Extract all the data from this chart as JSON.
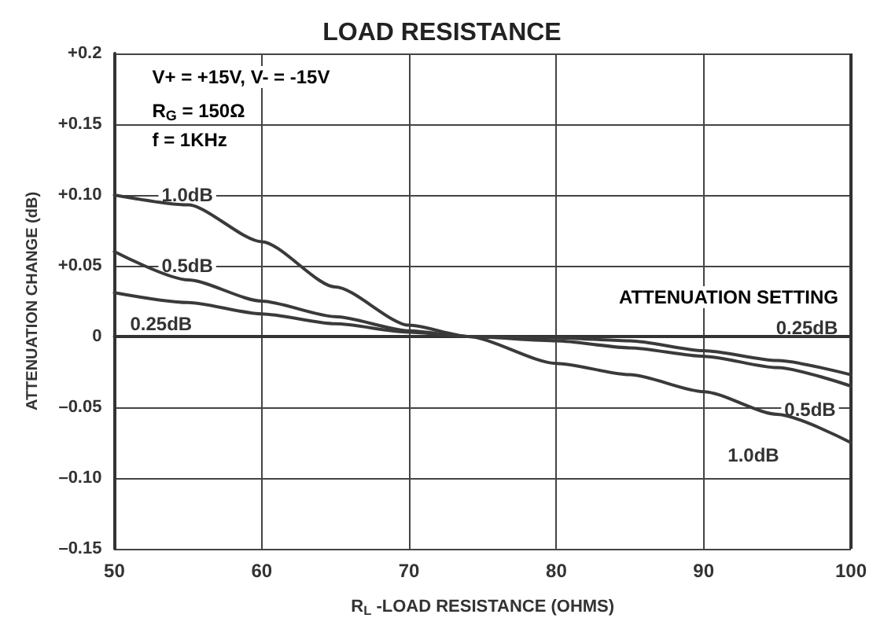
{
  "chart_data": {
    "type": "line",
    "title": "LOAD RESISTANCE",
    "xlabel": "R$_{L}$ -LOAD RESISTANCE (OHMS)",
    "ylabel": "ATTENUATION CHANGE (dB)",
    "annotations": [
      "V+ = +15V, V- = -15V",
      "R$_{G}$ = 150Ω",
      "f = 1KHz",
      "ATTENUATION SETTING"
    ],
    "x": [
      50,
      55,
      60,
      65,
      70,
      74,
      80,
      85,
      90,
      95,
      100
    ],
    "series": [
      {
        "name": "1.0dB",
        "color": "#3a3a3a",
        "values": [
          0.1,
          0.093,
          0.067,
          0.035,
          0.008,
          0,
          -0.019,
          -0.027,
          -0.039,
          -0.055,
          -0.075
        ]
      },
      {
        "name": "0.5dB",
        "color": "#3a3a3a",
        "values": [
          0.06,
          0.04,
          0.025,
          0.014,
          0.004,
          0,
          -0.003,
          -0.008,
          -0.014,
          -0.022,
          -0.035
        ]
      },
      {
        "name": "0.25dB",
        "color": "#3a3a3a",
        "values": [
          0.031,
          0.024,
          0.016,
          0.009,
          0.003,
          0,
          -0.001,
          -0.003,
          -0.01,
          -0.017,
          -0.027
        ]
      }
    ],
    "xlim": [
      50,
      100
    ],
    "xticks": [
      50,
      60,
      70,
      80,
      90,
      100
    ],
    "ylim": [
      -0.15,
      0.2
    ],
    "yticks": [
      {
        "value": 0.2,
        "label": "+0.2"
      },
      {
        "value": 0.15,
        "label": "+0.15"
      },
      {
        "value": 0.1,
        "label": "+0.10"
      },
      {
        "value": 0.05,
        "label": "+0.05"
      },
      0,
      {
        "value": -0.05,
        "label": "–0.05"
      },
      {
        "value": -0.1,
        "label": "–0.10"
      },
      {
        "value": -0.15,
        "label": "–0.15"
      }
    ],
    "grid": true,
    "legend": false,
    "marker": "none",
    "line_style": "solid"
  }
}
